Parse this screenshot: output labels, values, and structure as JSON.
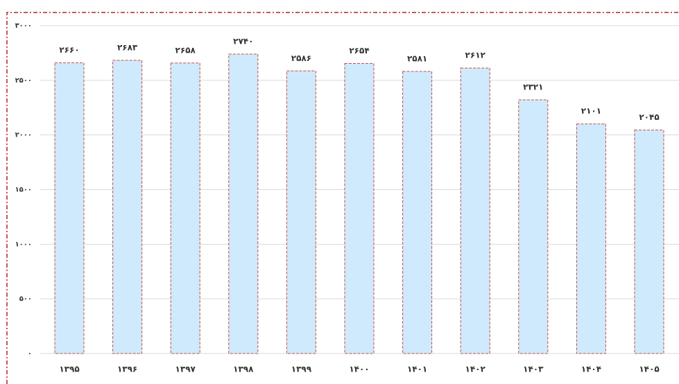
{
  "chart_data": {
    "type": "bar",
    "categories": [
      "۱۳۹۵",
      "۱۳۹۶",
      "۱۳۹۷",
      "۱۳۹۸",
      "۱۳۹۹",
      "۱۴۰۰",
      "۱۴۰۱",
      "۱۴۰۲",
      "۱۴۰۳",
      "۱۴۰۴",
      "۱۴۰۵"
    ],
    "values": [
      2660,
      2683,
      2658,
      2740,
      2586,
      2654,
      2581,
      2612,
      2321,
      2101,
      2045
    ],
    "value_labels": [
      "۲۶۶۰",
      "۲۶۸۳",
      "۲۶۵۸",
      "۲۷۴۰",
      "۲۵۸۶",
      "۲۶۵۴",
      "۲۵۸۱",
      "۲۶۱۲",
      "۲۳۲۱",
      "۲۱۰۱",
      "۲۰۴۵"
    ],
    "color": "#cfeafc",
    "edge_color": "#c0504d",
    "ylim": [
      0,
      3000
    ],
    "yticks": [
      {
        "value": 0,
        "label": "۰"
      },
      {
        "value": 500,
        "label": "۵۰۰"
      },
      {
        "value": 1000,
        "label": "۱۰۰۰"
      },
      {
        "value": 1500,
        "label": "۱۵۰۰"
      },
      {
        "value": 2000,
        "label": "۲۰۰۰"
      },
      {
        "value": 2500,
        "label": "۲۵۰۰"
      },
      {
        "value": 3000,
        "label": "۳۰۰۰"
      }
    ],
    "grid": true
  }
}
